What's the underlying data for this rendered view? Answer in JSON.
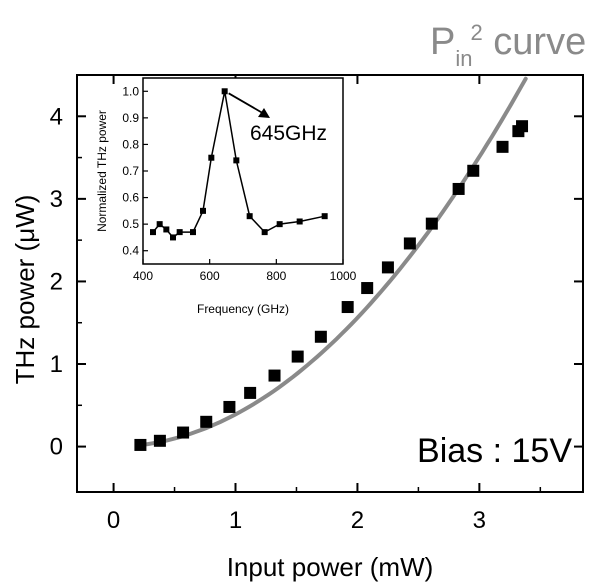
{
  "chart_data": {
    "main": {
      "type": "scatter",
      "xlabel": "Input power (mW)",
      "ylabel": "THz power (μW)",
      "xlim": [
        -0.3,
        3.85
      ],
      "ylim": [
        -0.55,
        4.5
      ],
      "xticks": [
        0,
        1,
        2,
        3
      ],
      "yticks": [
        0,
        1,
        2,
        3,
        4
      ],
      "series": [
        {
          "points": [
            [
              0.22,
              0.02
            ],
            [
              0.38,
              0.07
            ],
            [
              0.57,
              0.17
            ],
            [
              0.76,
              0.3
            ],
            [
              0.95,
              0.48
            ],
            [
              1.12,
              0.65
            ],
            [
              1.32,
              0.86
            ],
            [
              1.51,
              1.09
            ],
            [
              1.7,
              1.33
            ],
            [
              1.92,
              1.69
            ],
            [
              2.08,
              1.92
            ],
            [
              2.25,
              2.17
            ],
            [
              2.43,
              2.46
            ],
            [
              2.61,
              2.7
            ],
            [
              2.83,
              3.12
            ],
            [
              2.95,
              3.34
            ],
            [
              3.19,
              3.63
            ],
            [
              3.32,
              3.82
            ],
            [
              3.35,
              3.88
            ]
          ],
          "color": "#000000",
          "marker": "square"
        },
        {
          "name": "P_in^2 curve",
          "fit": "quadratic",
          "coefficient": 0.39,
          "x_range": [
            0.2,
            3.38
          ],
          "color": "#8a8a8a"
        }
      ],
      "annotation": "Bias : 15V",
      "curve_label": {
        "base": "P",
        "subscript": "in",
        "superscript": "2",
        "rest": " curve"
      }
    },
    "inset": {
      "type": "line",
      "xlabel": "Frequency (GHz)",
      "ylabel": "Normalized THz power",
      "xlim": [
        400,
        1000
      ],
      "ylim": [
        0.35,
        1.05
      ],
      "xticks": [
        400,
        600,
        800,
        1000
      ],
      "yticks": [
        0.4,
        0.5,
        0.6,
        0.7,
        0.8,
        0.9,
        1.0
      ],
      "ytick_labels": [
        "0.4",
        "0.5",
        "0.6",
        "0.7",
        "0.8",
        "0.9",
        "1.0"
      ],
      "points": [
        [
          430,
          0.47
        ],
        [
          450,
          0.5
        ],
        [
          470,
          0.48
        ],
        [
          490,
          0.45
        ],
        [
          510,
          0.47
        ],
        [
          550,
          0.47
        ],
        [
          580,
          0.55
        ],
        [
          605,
          0.75
        ],
        [
          645,
          1.0
        ],
        [
          680,
          0.74
        ],
        [
          720,
          0.53
        ],
        [
          765,
          0.47
        ],
        [
          810,
          0.5
        ],
        [
          870,
          0.51
        ],
        [
          945,
          0.53
        ]
      ],
      "peak_label": "645GHz",
      "peak_x": 645
    }
  }
}
